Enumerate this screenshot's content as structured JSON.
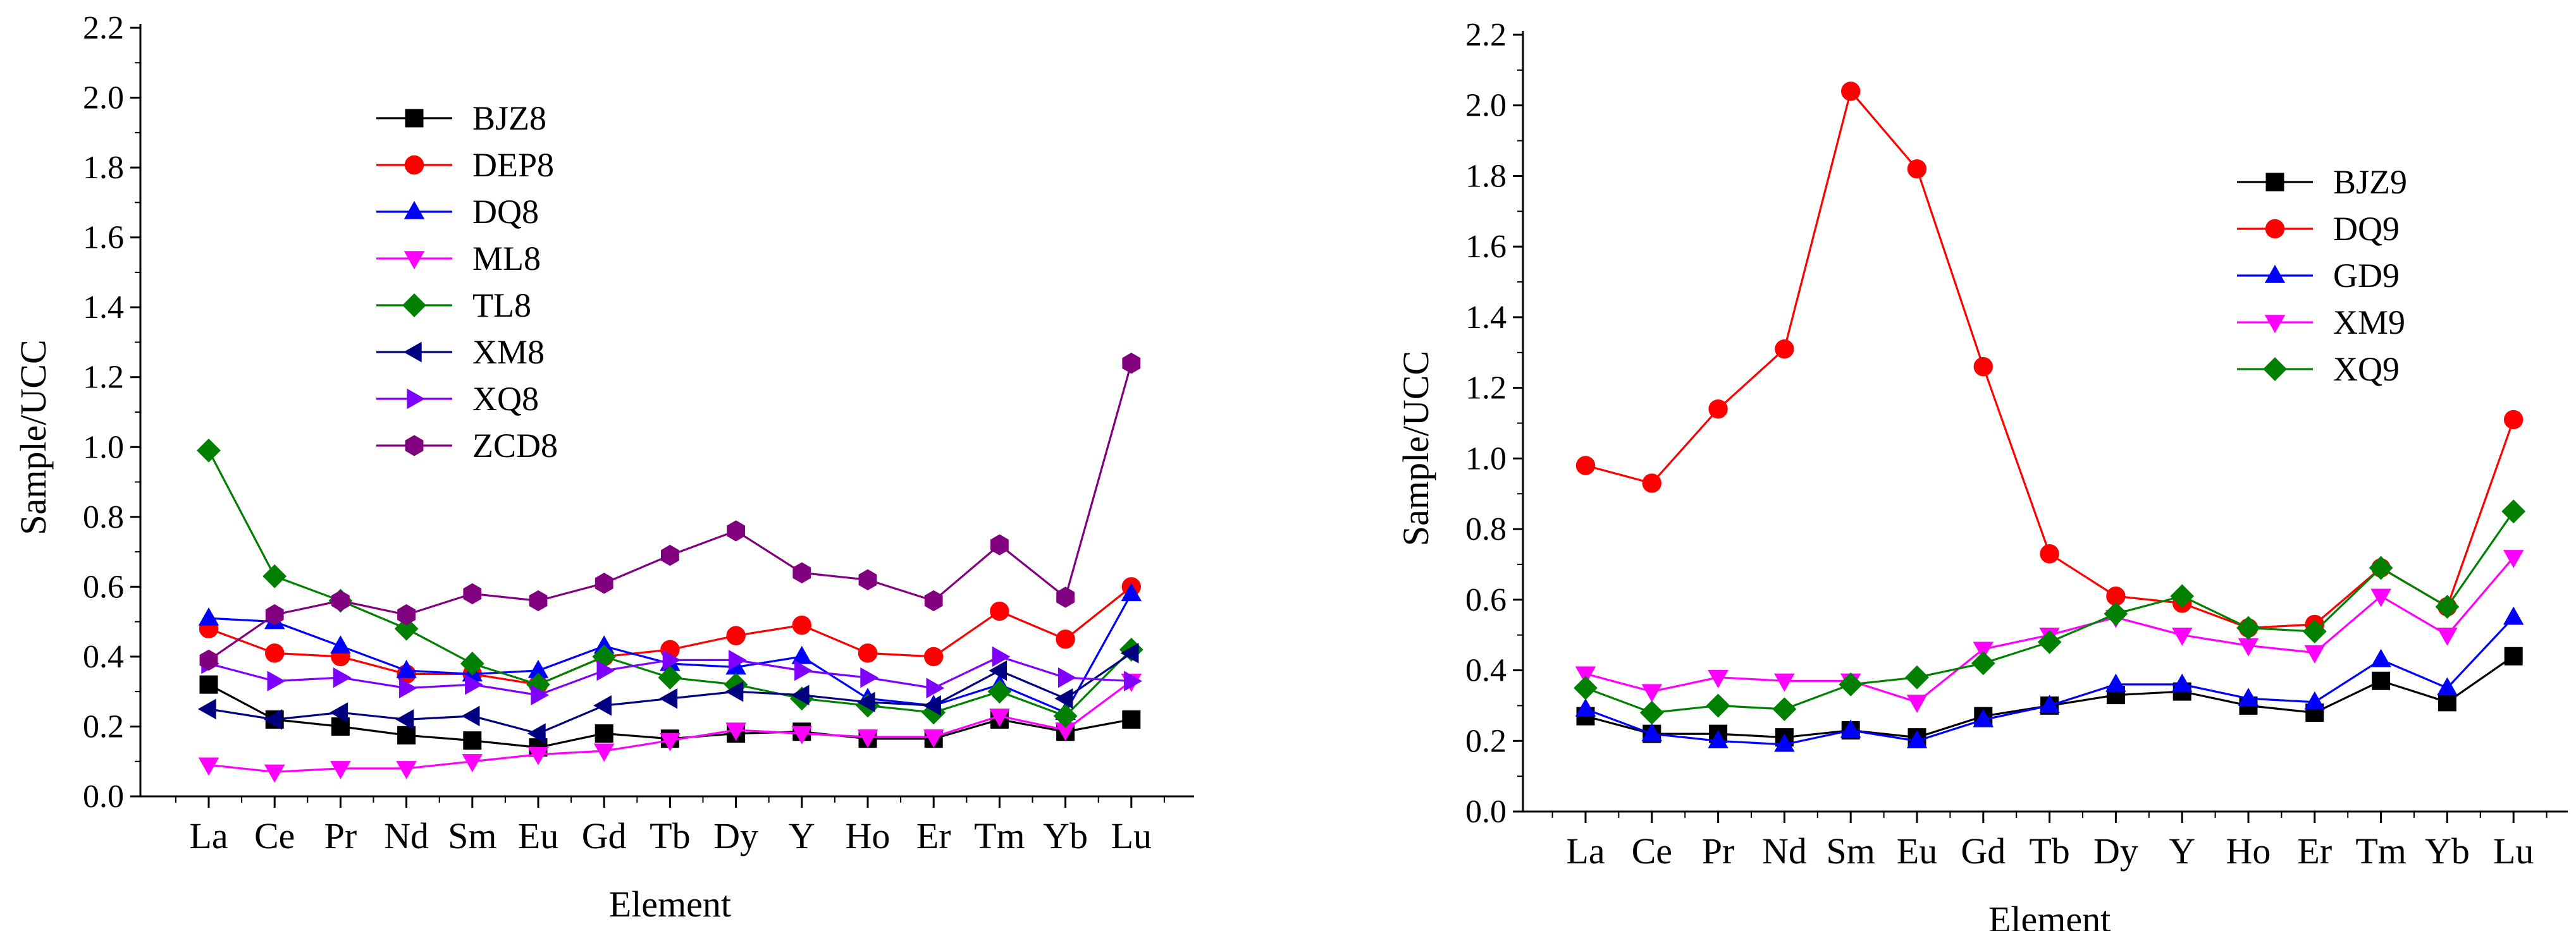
{
  "chart_data": [
    {
      "type": "line",
      "title": "",
      "xlabel": "Element",
      "ylabel": "Sample/UCC",
      "ylim": [
        0,
        2.2
      ],
      "yticks": [
        "0.0",
        "0.2",
        "0.4",
        "0.6",
        "0.8",
        "1.0",
        "1.2",
        "1.4",
        "1.6",
        "1.8",
        "2.0",
        "2.2"
      ],
      "categories": [
        "La",
        "Ce",
        "Pr",
        "Nd",
        "Sm",
        "Eu",
        "Gd",
        "Tb",
        "Dy",
        "Y",
        "Ho",
        "Er",
        "Tm",
        "Yb",
        "Lu"
      ],
      "legend_position": "top-left",
      "series": [
        {
          "name": "BJZ8",
          "color": "#000000",
          "marker": "square",
          "values": [
            0.32,
            0.22,
            0.2,
            0.175,
            0.16,
            0.14,
            0.18,
            0.165,
            0.18,
            0.185,
            0.165,
            0.165,
            0.22,
            0.185,
            0.22
          ]
        },
        {
          "name": "DEP8",
          "color": "#ff0000",
          "marker": "circle",
          "values": [
            0.48,
            0.41,
            0.4,
            0.35,
            0.35,
            0.32,
            0.4,
            0.42,
            0.46,
            0.49,
            0.41,
            0.4,
            0.53,
            0.45,
            0.6
          ]
        },
        {
          "name": "DQ8",
          "color": "#0000ff",
          "marker": "triangle-up",
          "values": [
            0.51,
            0.5,
            0.43,
            0.36,
            0.35,
            0.36,
            0.43,
            0.38,
            0.37,
            0.4,
            0.28,
            0.26,
            0.32,
            0.24,
            0.58
          ]
        },
        {
          "name": "ML8",
          "color": "#ff00ff",
          "marker": "triangle-down",
          "values": [
            0.09,
            0.07,
            0.08,
            0.08,
            0.1,
            0.12,
            0.13,
            0.16,
            0.19,
            0.18,
            0.17,
            0.17,
            0.23,
            0.19,
            0.33
          ]
        },
        {
          "name": "TL8",
          "color": "#008000",
          "marker": "diamond",
          "values": [
            0.99,
            0.63,
            0.56,
            0.48,
            0.38,
            0.32,
            0.4,
            0.34,
            0.32,
            0.28,
            0.26,
            0.24,
            0.3,
            0.23,
            0.42
          ]
        },
        {
          "name": "XM8",
          "color": "#000080",
          "marker": "triangle-left",
          "values": [
            0.25,
            0.22,
            0.24,
            0.22,
            0.23,
            0.18,
            0.26,
            0.28,
            0.3,
            0.29,
            0.27,
            0.26,
            0.36,
            0.28,
            0.41
          ]
        },
        {
          "name": "XQ8",
          "color": "#8000ff",
          "marker": "triangle-right",
          "values": [
            0.38,
            0.33,
            0.34,
            0.31,
            0.32,
            0.29,
            0.36,
            0.39,
            0.39,
            0.36,
            0.34,
            0.31,
            0.4,
            0.34,
            0.33
          ]
        },
        {
          "name": "ZCD8",
          "color": "#800080",
          "marker": "hexagon",
          "values": [
            0.39,
            0.52,
            0.56,
            0.52,
            0.58,
            0.56,
            0.61,
            0.69,
            0.76,
            0.64,
            0.62,
            0.56,
            0.72,
            0.57,
            1.24
          ]
        }
      ]
    },
    {
      "type": "line",
      "title": "",
      "xlabel": "Element",
      "ylabel": "Sample/UCC",
      "ylim": [
        0,
        2.2
      ],
      "yticks": [
        "0.0",
        "0.2",
        "0.4",
        "0.6",
        "0.8",
        "1.0",
        "1.2",
        "1.4",
        "1.6",
        "1.8",
        "2.0",
        "2.2"
      ],
      "categories": [
        "La",
        "Ce",
        "Pr",
        "Nd",
        "Sm",
        "Eu",
        "Gd",
        "Tb",
        "Dy",
        "Y",
        "Ho",
        "Er",
        "Tm",
        "Yb",
        "Lu"
      ],
      "legend_position": "top-right",
      "series": [
        {
          "name": "BJZ9",
          "color": "#000000",
          "marker": "square",
          "values": [
            0.27,
            0.22,
            0.22,
            0.21,
            0.23,
            0.21,
            0.27,
            0.3,
            0.33,
            0.34,
            0.3,
            0.28,
            0.37,
            0.31,
            0.44
          ]
        },
        {
          "name": "DQ9",
          "color": "#ff0000",
          "marker": "circle",
          "values": [
            0.98,
            0.93,
            1.14,
            1.31,
            2.04,
            1.82,
            1.26,
            0.73,
            0.61,
            0.59,
            0.52,
            0.53,
            0.69,
            0.58,
            1.11
          ]
        },
        {
          "name": "GD9",
          "color": "#0000ff",
          "marker": "triangle-up",
          "values": [
            0.29,
            0.22,
            0.2,
            0.19,
            0.23,
            0.2,
            0.26,
            0.3,
            0.36,
            0.36,
            0.32,
            0.31,
            0.43,
            0.35,
            0.55
          ]
        },
        {
          "name": "XM9",
          "color": "#ff00ff",
          "marker": "triangle-down",
          "values": [
            0.39,
            0.34,
            0.38,
            0.37,
            0.37,
            0.31,
            0.46,
            0.5,
            0.55,
            0.5,
            0.47,
            0.45,
            0.61,
            0.5,
            0.72
          ]
        },
        {
          "name": "XQ9",
          "color": "#008000",
          "marker": "diamond",
          "values": [
            0.35,
            0.28,
            0.3,
            0.29,
            0.36,
            0.38,
            0.42,
            0.48,
            0.56,
            0.61,
            0.52,
            0.51,
            0.69,
            0.58,
            0.85
          ]
        }
      ]
    }
  ]
}
